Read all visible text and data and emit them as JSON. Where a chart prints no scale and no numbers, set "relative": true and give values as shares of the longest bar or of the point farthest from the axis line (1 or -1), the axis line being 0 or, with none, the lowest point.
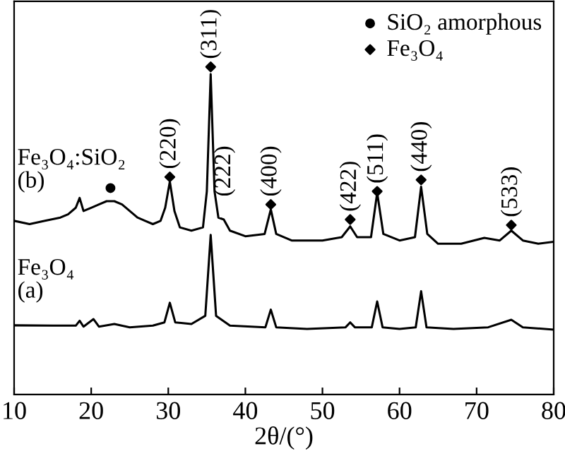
{
  "chart_data": {
    "type": "line",
    "relative": true,
    "xlabel": "2θ/(°)",
    "xlim": [
      10,
      80
    ],
    "xticks": [
      10,
      20,
      30,
      40,
      50,
      60,
      70,
      80
    ],
    "grid": false,
    "legend": "top right",
    "tick_labels": "x",
    "series": [
      {
        "color": "#000000",
        "x": [
          10,
          12,
          14,
          16,
          17,
          18,
          18.5,
          19,
          20,
          21,
          22,
          23,
          24,
          25,
          26,
          27,
          28,
          29,
          29.6,
          30.2,
          30.8,
          31.5,
          33,
          34.5,
          35,
          35.5,
          36,
          36.5,
          37.2,
          38,
          40,
          42.5,
          43.3,
          44,
          46,
          50,
          52.5,
          53.6,
          54.5,
          56.3,
          57.1,
          57.9,
          60,
          62,
          62.8,
          63.6,
          65,
          68,
          71,
          73,
          74.5,
          76,
          78,
          80
        ],
        "values": [
          0.53,
          0.52,
          0.53,
          0.54,
          0.55,
          0.57,
          0.6,
          0.56,
          0.57,
          0.58,
          0.59,
          0.59,
          0.58,
          0.56,
          0.54,
          0.53,
          0.52,
          0.53,
          0.57,
          0.65,
          0.56,
          0.51,
          0.5,
          0.51,
          0.62,
          0.978,
          0.62,
          0.54,
          0.534,
          0.5,
          0.483,
          0.49,
          0.565,
          0.49,
          0.47,
          0.47,
          0.48,
          0.513,
          0.48,
          0.48,
          0.616,
          0.49,
          0.47,
          0.48,
          0.634,
          0.49,
          0.46,
          0.46,
          0.478,
          0.47,
          0.5,
          0.47,
          0.46,
          0.466
        ]
      },
      {
        "color": "#000000",
        "x": [
          10,
          15,
          18,
          18.5,
          19,
          20.3,
          21,
          23,
          25,
          28,
          29.5,
          30.2,
          30.9,
          33,
          34.8,
          35.5,
          36.2,
          38,
          42.6,
          43.3,
          44,
          48,
          53,
          53.6,
          54.2,
          56.4,
          57.1,
          57.8,
          60,
          62.1,
          62.8,
          63.5,
          67,
          71.5,
          74.5,
          76,
          80
        ],
        "values": [
          0.211,
          0.21,
          0.21,
          0.225,
          0.207,
          0.23,
          0.207,
          0.215,
          0.205,
          0.21,
          0.22,
          0.28,
          0.22,
          0.215,
          0.24,
          0.487,
          0.24,
          0.21,
          0.205,
          0.259,
          0.205,
          0.2,
          0.205,
          0.22,
          0.205,
          0.205,
          0.284,
          0.205,
          0.2,
          0.205,
          0.315,
          0.205,
          0.2,
          0.205,
          0.228,
          0.205,
          0.198
        ]
      },
      {
        "type": "scatter",
        "name": "SiO₂ amorphous",
        "marker": "circle",
        "color": "#000000",
        "x": [
          22.5
        ],
        "values": [
          0.63
        ]
      },
      {
        "type": "scatter",
        "name": "Fe₃O₄",
        "marker": "diamond",
        "color": "#000000",
        "x": [
          30.2,
          35.5,
          43.3,
          53.6,
          57.1,
          62.8,
          74.5
        ],
        "values": [
          0.664,
          1.0,
          0.58,
          0.534,
          0.62,
          0.655,
          0.517
        ]
      }
    ],
    "annotations": [
      {
        "text": "(220)",
        "x": 30.2,
        "y": 0.664
      },
      {
        "text": "(311)",
        "x": 35.5,
        "y": 1.0
      },
      {
        "text": "(222)",
        "x": 37.3,
        "y": 0.58
      },
      {
        "text": "(400)",
        "x": 43.3,
        "y": 0.58
      },
      {
        "text": "(422)",
        "x": 53.6,
        "y": 0.534
      },
      {
        "text": "(511)",
        "x": 57.1,
        "y": 0.62
      },
      {
        "text": "(440)",
        "x": 62.8,
        "y": 0.655
      },
      {
        "text": "(533)",
        "x": 74.5,
        "y": 0.517
      },
      "Fe₃O₄:SiO₂\n(b)",
      "Fe₃O₄\n(a)"
    ]
  }
}
